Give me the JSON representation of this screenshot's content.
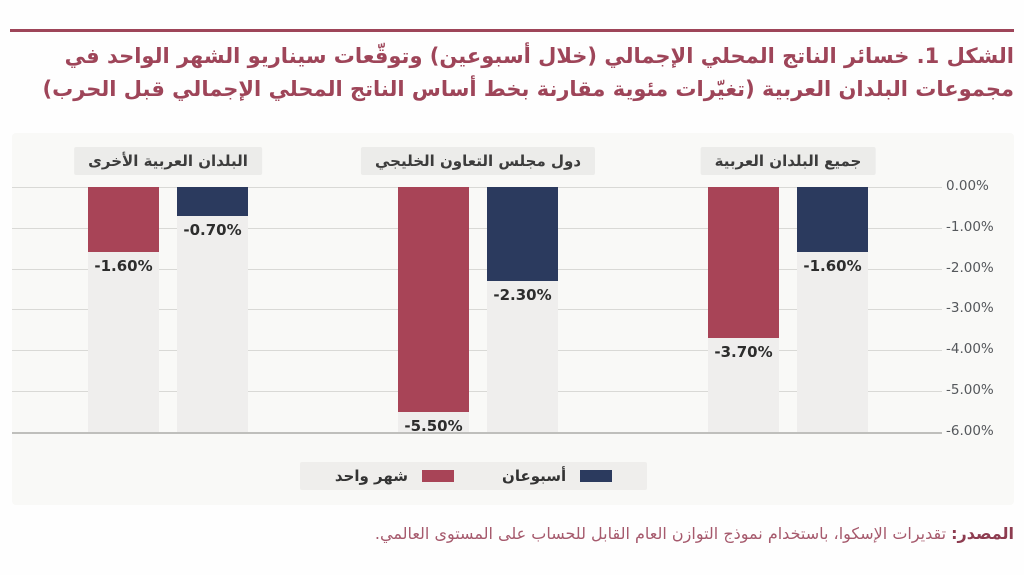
{
  "title": {
    "label": "الشكل 1.",
    "text": "خسائر الناتج المحلي الإجمالي (خلال أسبوعين) وتوقّعات سيناريو الشهر الواحد في مجموعات البلدان العربية (تغيّرات مئوية مقارنة بخط أساس الناتج المحلي الإجمالي قبل الحرب)"
  },
  "source": {
    "label": "المصدر:",
    "text": " تقديرات الإسكوا، باستخدام نموذج التوازن العام القابل للحساب على المستوى العالمي."
  },
  "colors": {
    "maroon": "#a84457",
    "navy": "#2b3a5e",
    "title_maroon": "#9e4559",
    "chart_bg": "#f9f9f7",
    "band_bg": "#efeeed",
    "category_box_bg": "#ececea",
    "legend_bg": "#efeeec",
    "grid": "#d9d9d6",
    "axis_line": "#bfbfbc",
    "axis_text": "#55585c"
  },
  "chart_data": {
    "type": "bar",
    "direction": "rtl",
    "title": "",
    "xlabel": "",
    "ylabel": "",
    "ylim": [
      -6,
      0
    ],
    "grid": true,
    "legend_position": "bottom",
    "categories": [
      "جميع البلدان العربية",
      "دول مجلس التعاون الخليجي",
      "البلدان العربية الأخرى"
    ],
    "series": [
      {
        "name": "شهر واحد",
        "color_key": "maroon",
        "values": [
          -3.7,
          -5.5,
          -1.6
        ],
        "labels": [
          "-3.70%",
          "-5.50%",
          "-1.60%"
        ]
      },
      {
        "name": "أسبوعان",
        "color_key": "navy",
        "values": [
          -1.6,
          -2.3,
          -0.7
        ],
        "labels": [
          "-1.60%",
          "-2.30%",
          "-0.70%"
        ]
      }
    ],
    "ylabels": [
      "0.00%",
      "-1.00%",
      "-2.00%",
      "-3.00%",
      "-4.00%",
      "-5.00%",
      "-6.00%"
    ]
  },
  "legend": {
    "items": [
      {
        "label": "أسبوعان",
        "color_key": "navy"
      },
      {
        "label": "شهر واحد",
        "color_key": "maroon"
      }
    ]
  }
}
